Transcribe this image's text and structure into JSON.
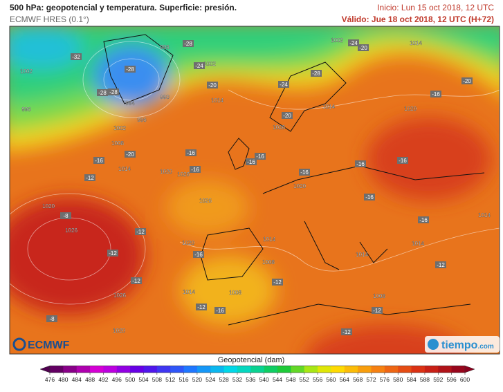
{
  "header": {
    "title": "500 hPa: geopotencial y temperatura. Superficie: presión.",
    "subtitle": "ECMWF HRES (0.1°)",
    "init": "Inicio: Lun 15 oct 2018, 12 UTC",
    "valid": "Válido: Jue 18 oct 2018, 12 UTC (H+72)"
  },
  "map": {
    "pressure_labels": [
      "1002",
      "996",
      "996",
      "1002",
      "990",
      "984",
      "996",
      "1002",
      "1008",
      "1014",
      "1014",
      "1020",
      "1026",
      "1026",
      "1020",
      "1026",
      "1020",
      "1026",
      "1020",
      "1014",
      "1008",
      "1014",
      "1008",
      "1008",
      "1014",
      "1014",
      "1014",
      "1020",
      "1026",
      "1014",
      "1020",
      "1014",
      "1002"
    ],
    "temperature_labels": [
      "-32",
      "-28",
      "-28",
      "-24",
      "-28",
      "-28",
      "-20",
      "-24",
      "-28",
      "-24",
      "-20",
      "-20",
      "-16",
      "-20",
      "-20",
      "-16",
      "-12",
      "-16",
      "-16",
      "-16",
      "-16",
      "-16",
      "-16",
      "-16",
      "-16",
      "-16",
      "-8",
      "-12",
      "-16",
      "-12",
      "-12",
      "-12",
      "-16",
      "-12",
      "-12",
      "-12",
      "-12",
      "-8"
    ]
  },
  "logos": {
    "left": "ECMWF",
    "right": "tiempo",
    "right_suffix": ".com"
  },
  "colorbar": {
    "label": "Geopotencial (dam)",
    "ticks": [
      476,
      480,
      484,
      488,
      492,
      496,
      500,
      504,
      508,
      512,
      516,
      520,
      524,
      528,
      532,
      536,
      540,
      544,
      548,
      552,
      556,
      560,
      564,
      568,
      572,
      576,
      580,
      584,
      588,
      592,
      596,
      600
    ]
  }
}
